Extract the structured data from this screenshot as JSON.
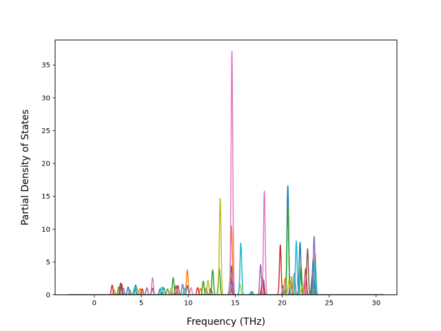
{
  "chart_data": {
    "type": "line",
    "title": "",
    "xlabel": "Frequency (THz)",
    "ylabel": "Partial Density of States",
    "xlim": [
      -4.17,
      32.21
    ],
    "ylim": [
      0,
      38.8
    ],
    "xticks": [
      0,
      5,
      10,
      15,
      20,
      25,
      30
    ],
    "yticks": [
      0,
      5,
      10,
      15,
      20,
      25,
      30,
      35
    ],
    "grid": false,
    "legend": "none",
    "x_range_plotted": [
      -2.8,
      30.8
    ],
    "series": [
      {
        "color": "#1f77b4",
        "peaks": [
          [
            3.6,
            1.2
          ],
          [
            4.4,
            1.5
          ],
          [
            7.0,
            0.9
          ],
          [
            9.9,
            1.4
          ],
          [
            14.6,
            4.4
          ],
          [
            20.6,
            16.6
          ],
          [
            21.9,
            8.0
          ],
          [
            23.3,
            5.5
          ]
        ]
      },
      {
        "color": "#ff7f0e",
        "peaks": [
          [
            2.1,
            0.8
          ],
          [
            4.9,
            1.0
          ],
          [
            9.9,
            3.8
          ],
          [
            11.3,
            1.0
          ],
          [
            14.6,
            10.5
          ],
          [
            17.8,
            1.0
          ],
          [
            20.3,
            2.5
          ],
          [
            22.4,
            1.5
          ],
          [
            23.5,
            6.3
          ]
        ]
      },
      {
        "color": "#2ca02c",
        "peaks": [
          [
            2.6,
            1.2
          ],
          [
            7.4,
            1.1
          ],
          [
            8.4,
            2.6
          ],
          [
            11.6,
            2.1
          ],
          [
            12.6,
            3.8
          ],
          [
            13.3,
            4.0
          ],
          [
            20.6,
            13.5
          ],
          [
            22.0,
            4.4
          ],
          [
            23.2,
            3.0
          ]
        ]
      },
      {
        "color": "#d62728",
        "peaks": [
          [
            1.9,
            1.5
          ],
          [
            2.9,
            1.7
          ],
          [
            5.1,
            0.9
          ],
          [
            8.9,
            1.4
          ],
          [
            11.0,
            1.1
          ],
          [
            14.5,
            2.9
          ],
          [
            17.9,
            2.7
          ],
          [
            19.8,
            7.6
          ],
          [
            22.5,
            4.0
          ]
        ]
      },
      {
        "color": "#9467bd",
        "peaks": [
          [
            3.1,
            1.0
          ],
          [
            5.6,
            1.1
          ],
          [
            9.4,
            1.6
          ],
          [
            14.7,
            2.0
          ],
          [
            17.7,
            4.6
          ],
          [
            21.3,
            3.3
          ],
          [
            23.4,
            8.9
          ]
        ]
      },
      {
        "color": "#8c564b",
        "peaks": [
          [
            2.8,
            1.8
          ],
          [
            6.2,
            1.0
          ],
          [
            8.7,
            1.4
          ],
          [
            12.4,
            1.0
          ],
          [
            18.0,
            2.3
          ],
          [
            20.9,
            2.1
          ],
          [
            22.7,
            7.0
          ]
        ]
      },
      {
        "color": "#e377c2",
        "peaks": [
          [
            6.2,
            2.6
          ],
          [
            10.3,
            1.1
          ],
          [
            14.65,
            37.3
          ],
          [
            18.1,
            15.8
          ],
          [
            21.2,
            1.6
          ],
          [
            22.4,
            2.5
          ]
        ]
      },
      {
        "color": "#7f7f7f",
        "peaks": [
          [
            3.8,
            0.7
          ],
          [
            7.8,
            0.9
          ],
          [
            11.9,
            1.0
          ],
          [
            16.8,
            0.5
          ],
          [
            20.1,
            1.4
          ]
        ]
      },
      {
        "color": "#bcbd22",
        "peaks": [
          [
            4.6,
            0.9
          ],
          [
            8.2,
            1.0
          ],
          [
            12.1,
            2.2
          ],
          [
            13.4,
            14.7
          ],
          [
            15.5,
            1.6
          ],
          [
            20.7,
            2.1
          ],
          [
            21.0,
            2.8
          ],
          [
            22.1,
            1.3
          ]
        ]
      },
      {
        "color": "#17becf",
        "peaks": [
          [
            4.3,
            1.2
          ],
          [
            7.2,
            1.2
          ],
          [
            9.6,
            1.0
          ],
          [
            15.6,
            7.9
          ],
          [
            16.7,
            0.5
          ],
          [
            21.5,
            8.2
          ],
          [
            23.5,
            5.2
          ]
        ]
      }
    ]
  }
}
